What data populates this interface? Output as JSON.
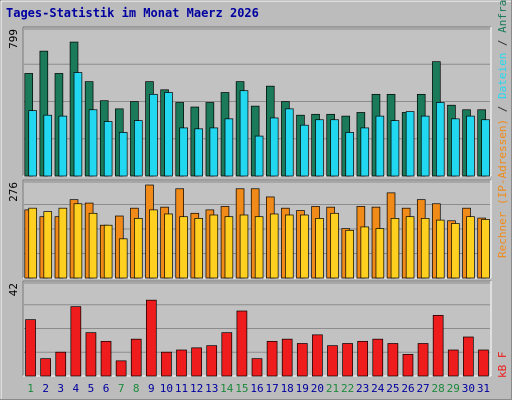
{
  "chart_data": {
    "type": "bar",
    "title": "Tages-Statistik im Monat Maerz 2026",
    "categories": [
      "1",
      "2",
      "3",
      "4",
      "5",
      "6",
      "7",
      "8",
      "9",
      "10",
      "11",
      "12",
      "13",
      "14",
      "15",
      "16",
      "17",
      "18",
      "19",
      "20",
      "21",
      "22",
      "23",
      "24",
      "25",
      "26",
      "27",
      "28",
      "29",
      "30",
      "31"
    ],
    "weekend_days": [
      "1",
      "7",
      "8",
      "14",
      "15",
      "21",
      "22",
      "28",
      "29"
    ],
    "panels": [
      {
        "key": "requests",
        "max_label": "799",
        "ylim": [
          0,
          799
        ],
        "series": [
          {
            "name": "Anfragen",
            "color": "#1a7a5a",
            "values": [
              565,
              688,
              565,
              738,
              520,
              415,
              370,
              410,
              520,
              475,
              405,
              380,
              405,
              460,
              520,
              385,
              495,
              410,
              335,
              340,
              340,
              330,
              350,
              450,
              450,
              350,
              450,
              630,
              390,
              365,
              365
            ]
          },
          {
            "name": "Dateien",
            "color": "#22d8f0",
            "values": [
              360,
              335,
              330,
              570,
              365,
              300,
              240,
              305,
              450,
              460,
              265,
              260,
              265,
              315,
              470,
              220,
              320,
              370,
              280,
              310,
              310,
              240,
              265,
              330,
              305,
              355,
              330,
              405,
              315,
              330,
              310
            ]
          }
        ]
      },
      {
        "key": "visits",
        "max_label": "276",
        "ylim": [
          0,
          276
        ],
        "series": [
          {
            "name": "Rechner (IP-Adressen)",
            "color": "#f08a18",
            "values": [
              200,
              180,
              180,
              230,
              220,
              155,
              182,
              205,
              273,
              208,
              262,
              190,
              200,
              210,
              262,
              262,
              238,
              205,
              198,
              210,
              208,
              145,
              210,
              208,
              250,
              205,
              230,
              218,
              168,
              205,
              176
            ]
          },
          {
            "name": "Besuche",
            "color": "#ffd020",
            "values": [
              205,
              195,
              205,
              218,
              190,
              155,
              115,
              175,
              200,
              188,
              180,
              175,
              185,
              180,
              185,
              180,
              188,
              185,
              185,
              175,
              190,
              140,
              150,
              145,
              175,
              180,
              175,
              170,
              160,
              180,
              172
            ]
          }
        ]
      },
      {
        "key": "traffic",
        "max_label": "42",
        "ylim": [
          0,
          42
        ],
        "series": [
          {
            "name": "kB F",
            "color": "#ee1c1c",
            "values": [
              26,
              8,
              11,
              32,
              20,
              16,
              7,
              17,
              35,
              11,
              12,
              13,
              14,
              20,
              30,
              8,
              16,
              17,
              15,
              19,
              14,
              15,
              16,
              17,
              15,
              10,
              15,
              28,
              12,
              18,
              12
            ]
          }
        ]
      }
    ],
    "legend_top": {
      "parts": [
        "Anfragen",
        "Dateien",
        "Rechner (IP-Adressen)"
      ],
      "separator": " / "
    },
    "legend_bottom": {
      "parts": [
        "kB F"
      ]
    },
    "colors": {
      "frame_bg": "#bcbcbc",
      "plot_bg": "#c2c2c2",
      "title": "#0000a0",
      "weekend_label": "#1c8a3c",
      "weekday_label": "#0000a0",
      "axis_label": "#000000"
    }
  }
}
